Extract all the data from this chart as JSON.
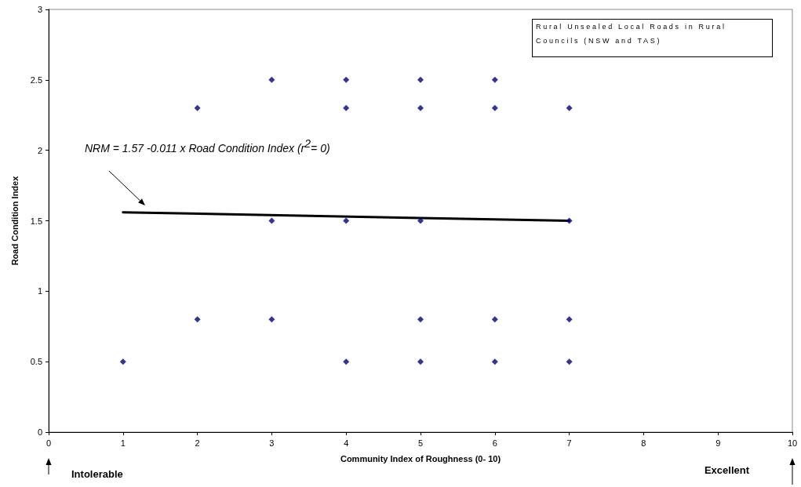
{
  "chart_data": {
    "type": "scatter",
    "xlabel": "Community Index of Roughness (0- 10)",
    "ylabel": "Road Condition Index",
    "xlim": [
      0,
      10
    ],
    "xticks": [
      0,
      1,
      2,
      3,
      4,
      5,
      6,
      7,
      8,
      9,
      10
    ],
    "ylim": [
      0,
      3
    ],
    "yticks": [
      0,
      0.5,
      1,
      1.5,
      2,
      2.5,
      3
    ],
    "grid": false,
    "series": [
      {
        "color": "#000080",
        "marker": "diamond",
        "x": [
          1,
          2,
          2,
          3,
          3,
          3,
          4,
          4,
          4,
          4,
          5,
          5,
          5,
          5,
          5,
          6,
          6,
          6,
          6,
          7,
          7,
          7,
          7
        ],
        "values": [
          0.5,
          2.3,
          0.8,
          2.5,
          1.5,
          0.8,
          2.5,
          2.3,
          1.5,
          0.5,
          2.5,
          2.3,
          1.5,
          0.8,
          0.5,
          2.5,
          2.3,
          0.8,
          0.5,
          2.3,
          1.5,
          0.8,
          0.5
        ]
      },
      {
        "type": "line",
        "color": "#000000",
        "marker": "none",
        "line_style": "solid",
        "x": [
          1,
          7
        ],
        "values": [
          1.56,
          1.5
        ]
      }
    ],
    "annotations": [
      "Rural Unsealed Local Roads in Rural Councils (NSW and TAS)",
      "NRM = 1.57 -0.011 x Road Condition Index (r$^{2}$= 0)",
      "Intolerable",
      "Excellent"
    ]
  }
}
